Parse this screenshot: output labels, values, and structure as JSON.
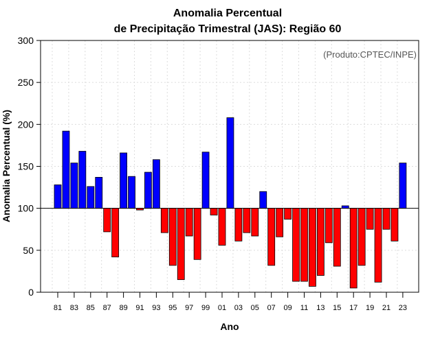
{
  "chart_data": {
    "type": "bar",
    "title": "Anomalia Percentual",
    "subtitle": "de Precipitação Trimestral (JAS): Região 60",
    "xlabel": "Ano",
    "ylabel": "Anomalia Percentual (%)",
    "ylim": [
      0,
      300
    ],
    "yticks": [
      0,
      50,
      100,
      150,
      200,
      250,
      300
    ],
    "baseline": 100,
    "grid": true,
    "annotation": "(Produto:CPTEC/INPE)",
    "colors": {
      "above": "#0000ff",
      "below": "#ff0000",
      "edge": "#000000"
    },
    "categories": [
      "81",
      "82",
      "83",
      "84",
      "85",
      "86",
      "87",
      "88",
      "89",
      "90",
      "91",
      "92",
      "93",
      "94",
      "95",
      "96",
      "97",
      "98",
      "99",
      "00",
      "01",
      "02",
      "03",
      "04",
      "05",
      "06",
      "07",
      "08",
      "09",
      "10",
      "11",
      "12",
      "13",
      "14",
      "15",
      "16",
      "17",
      "18",
      "19",
      "20",
      "21",
      "22",
      "23"
    ],
    "xtick_labels": [
      "81",
      "83",
      "85",
      "87",
      "89",
      "91",
      "93",
      "95",
      "97",
      "99",
      "01",
      "03",
      "05",
      "07",
      "09",
      "11",
      "13",
      "15",
      "17",
      "19",
      "21",
      "23"
    ],
    "values": [
      128,
      192,
      154,
      168,
      126,
      137,
      72,
      42,
      166,
      138,
      98,
      143,
      158,
      71,
      32,
      15,
      67,
      39,
      167,
      92,
      56,
      208,
      61,
      71,
      67,
      120,
      32,
      66,
      87,
      13,
      13,
      7,
      20,
      59,
      31,
      103,
      5,
      32,
      75,
      12,
      75,
      61,
      154
    ]
  }
}
